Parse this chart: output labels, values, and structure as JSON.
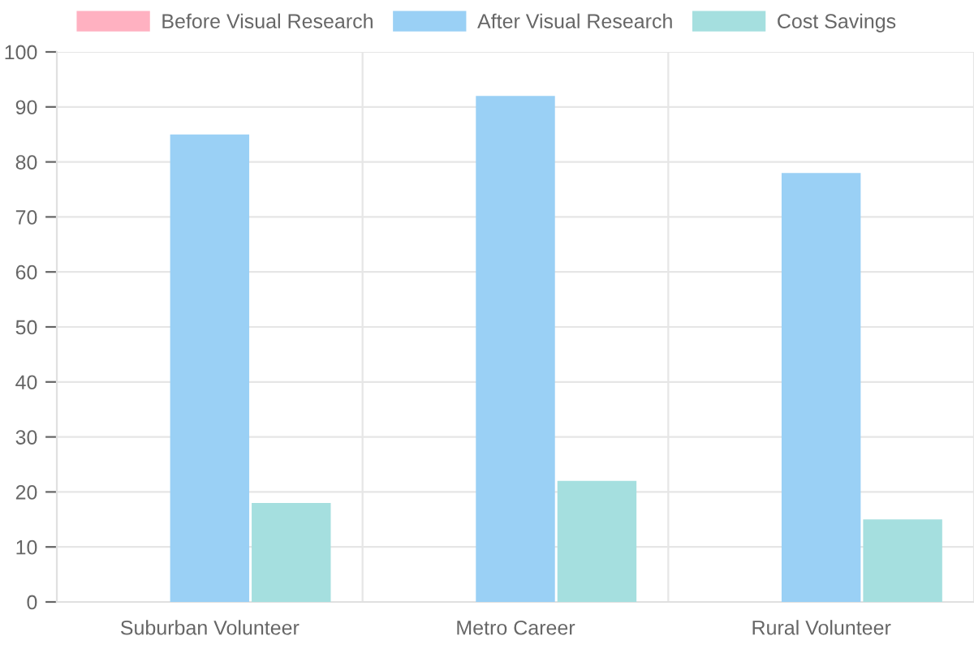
{
  "chart_data": {
    "type": "bar",
    "categories": [
      "Suburban Volunteer",
      "Metro Career",
      "Rural Volunteer"
    ],
    "series": [
      {
        "name": "Before Visual Research",
        "color": "#ffb1c1",
        "values": [
          null,
          null,
          null
        ]
      },
      {
        "name": "After Visual Research",
        "color": "#9ad0f5",
        "values": [
          85,
          92,
          78
        ]
      },
      {
        "name": "Cost Savings",
        "color": "#a5dfdf",
        "values": [
          18,
          22,
          15
        ]
      }
    ],
    "ylim": [
      0,
      100
    ],
    "yticks": [
      0,
      10,
      20,
      30,
      40,
      50,
      60,
      70,
      80,
      90,
      100
    ],
    "grid": true,
    "legend": "top"
  }
}
